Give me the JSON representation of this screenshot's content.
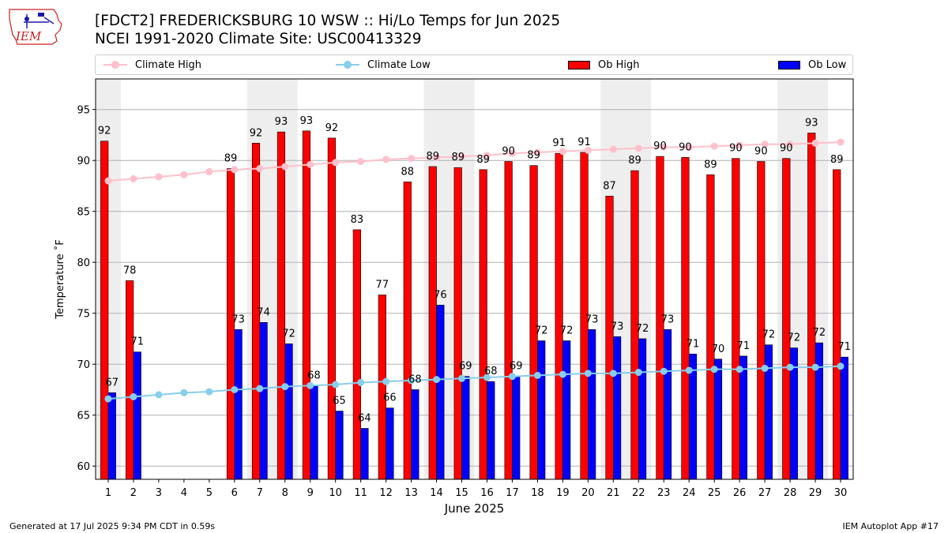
{
  "header": {
    "title_line1": "[FDCT2] FREDERICKSBURG 10 WSW :: Hi/Lo Temps for Jun 2025",
    "title_line2": "NCEI 1991-2020 Climate Site: USC00413329"
  },
  "logo": {
    "text": "IEM"
  },
  "legend": {
    "climate_high": "Climate High",
    "climate_low": "Climate Low",
    "ob_high": "Ob High",
    "ob_low": "Ob Low"
  },
  "footer": {
    "generated": "Generated at 17 Jul 2025 9:34 PM CDT in 0.59s",
    "app": "IEM Autoplot App #17"
  },
  "colors": {
    "ob_high": "#ff0000",
    "ob_low": "#0000ff",
    "climate_high": "#ffc0cb",
    "climate_low": "#87ceeb",
    "weekend_shade": "#eeeeee",
    "grid": "#b0b0b0"
  },
  "chart_data": {
    "type": "bar",
    "xlabel": "June 2025",
    "ylabel": "Temperature ˚F",
    "ylim": [
      58.7,
      98
    ],
    "yticks": [
      60,
      65,
      70,
      75,
      80,
      85,
      90,
      95
    ],
    "grid": "horizontal",
    "legend_position": "top",
    "weekend_days": [
      1,
      7,
      8,
      14,
      15,
      21,
      22,
      28,
      29
    ],
    "days": [
      1,
      2,
      3,
      4,
      5,
      6,
      7,
      8,
      9,
      10,
      11,
      12,
      13,
      14,
      15,
      16,
      17,
      18,
      19,
      20,
      21,
      22,
      23,
      24,
      25,
      26,
      27,
      28,
      29,
      30
    ],
    "series": [
      {
        "name": "Ob High",
        "kind": "bar",
        "values": [
          91.9,
          78.2,
          null,
          null,
          null,
          89.2,
          91.7,
          92.8,
          92.9,
          92.2,
          83.2,
          76.8,
          87.9,
          89.4,
          89.3,
          89.1,
          89.9,
          89.5,
          90.7,
          90.8,
          86.5,
          89.0,
          90.4,
          90.3,
          88.6,
          90.2,
          89.9,
          90.2,
          92.7,
          89.1
        ],
        "labels": [
          "92",
          "78",
          "",
          "",
          "",
          "89",
          "92",
          "93",
          "93",
          "92",
          "83",
          "77",
          "88",
          "89",
          "89",
          "89",
          "90",
          "89",
          "91",
          "91",
          "87",
          "89",
          "90",
          "90",
          "89",
          "90",
          "90",
          "90",
          "93",
          "89"
        ]
      },
      {
        "name": "Ob Low",
        "kind": "bar",
        "values": [
          67.2,
          71.2,
          null,
          null,
          null,
          73.4,
          74.1,
          72.0,
          67.9,
          65.4,
          63.7,
          65.7,
          67.5,
          75.8,
          68.8,
          68.3,
          68.8,
          72.3,
          72.3,
          73.4,
          72.7,
          72.5,
          73.4,
          71.0,
          70.5,
          70.8,
          71.9,
          71.6,
          72.1,
          70.7
        ],
        "labels": [
          "67",
          "71",
          "",
          "",
          "",
          "73",
          "74",
          "72",
          "68",
          "65",
          "64",
          "66",
          "68",
          "76",
          "69",
          "68",
          "69",
          "72",
          "72",
          "73",
          "73",
          "72",
          "73",
          "71",
          "70",
          "71",
          "72",
          "72",
          "72",
          "71"
        ]
      },
      {
        "name": "Climate High",
        "kind": "line",
        "values": [
          88.0,
          88.2,
          88.4,
          88.6,
          88.9,
          89.1,
          89.2,
          89.4,
          89.6,
          89.8,
          89.9,
          90.1,
          90.2,
          90.3,
          90.4,
          90.5,
          90.7,
          90.8,
          90.9,
          91.0,
          91.1,
          91.2,
          91.3,
          91.3,
          91.4,
          91.5,
          91.6,
          91.6,
          91.7,
          91.8
        ]
      },
      {
        "name": "Climate Low",
        "kind": "line",
        "values": [
          66.6,
          66.8,
          67.0,
          67.2,
          67.3,
          67.5,
          67.6,
          67.8,
          67.9,
          68.0,
          68.2,
          68.3,
          68.4,
          68.5,
          68.6,
          68.7,
          68.8,
          68.9,
          69.0,
          69.1,
          69.1,
          69.2,
          69.3,
          69.4,
          69.5,
          69.5,
          69.6,
          69.7,
          69.7,
          69.8
        ]
      }
    ]
  }
}
